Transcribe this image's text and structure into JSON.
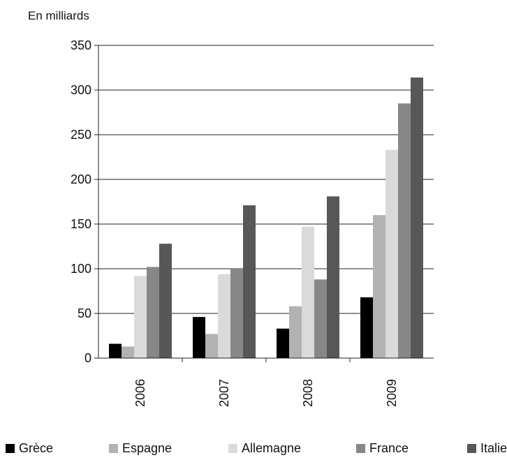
{
  "chart_data": {
    "type": "bar",
    "ylabel": "En milliards",
    "ylim": [
      0,
      350
    ],
    "yticks": [
      0,
      50,
      100,
      150,
      200,
      250,
      300,
      350
    ],
    "grid": true,
    "legend_position": "bottom",
    "categories": [
      "2006",
      "2007",
      "2008",
      "2009"
    ],
    "series": [
      {
        "name": "Grèce",
        "color": "#000000",
        "values": [
          16,
          46,
          33,
          68
        ]
      },
      {
        "name": "Espagne",
        "color": "#b2b2b2",
        "values": [
          13,
          27,
          58,
          160
        ]
      },
      {
        "name": "Allemagne",
        "color": "#dadada",
        "values": [
          92,
          94,
          147,
          233
        ]
      },
      {
        "name": "France",
        "color": "#878787",
        "values": [
          102,
          100,
          88,
          285
        ]
      },
      {
        "name": "Italie",
        "color": "#575757",
        "values": [
          128,
          171,
          181,
          314
        ]
      }
    ]
  }
}
